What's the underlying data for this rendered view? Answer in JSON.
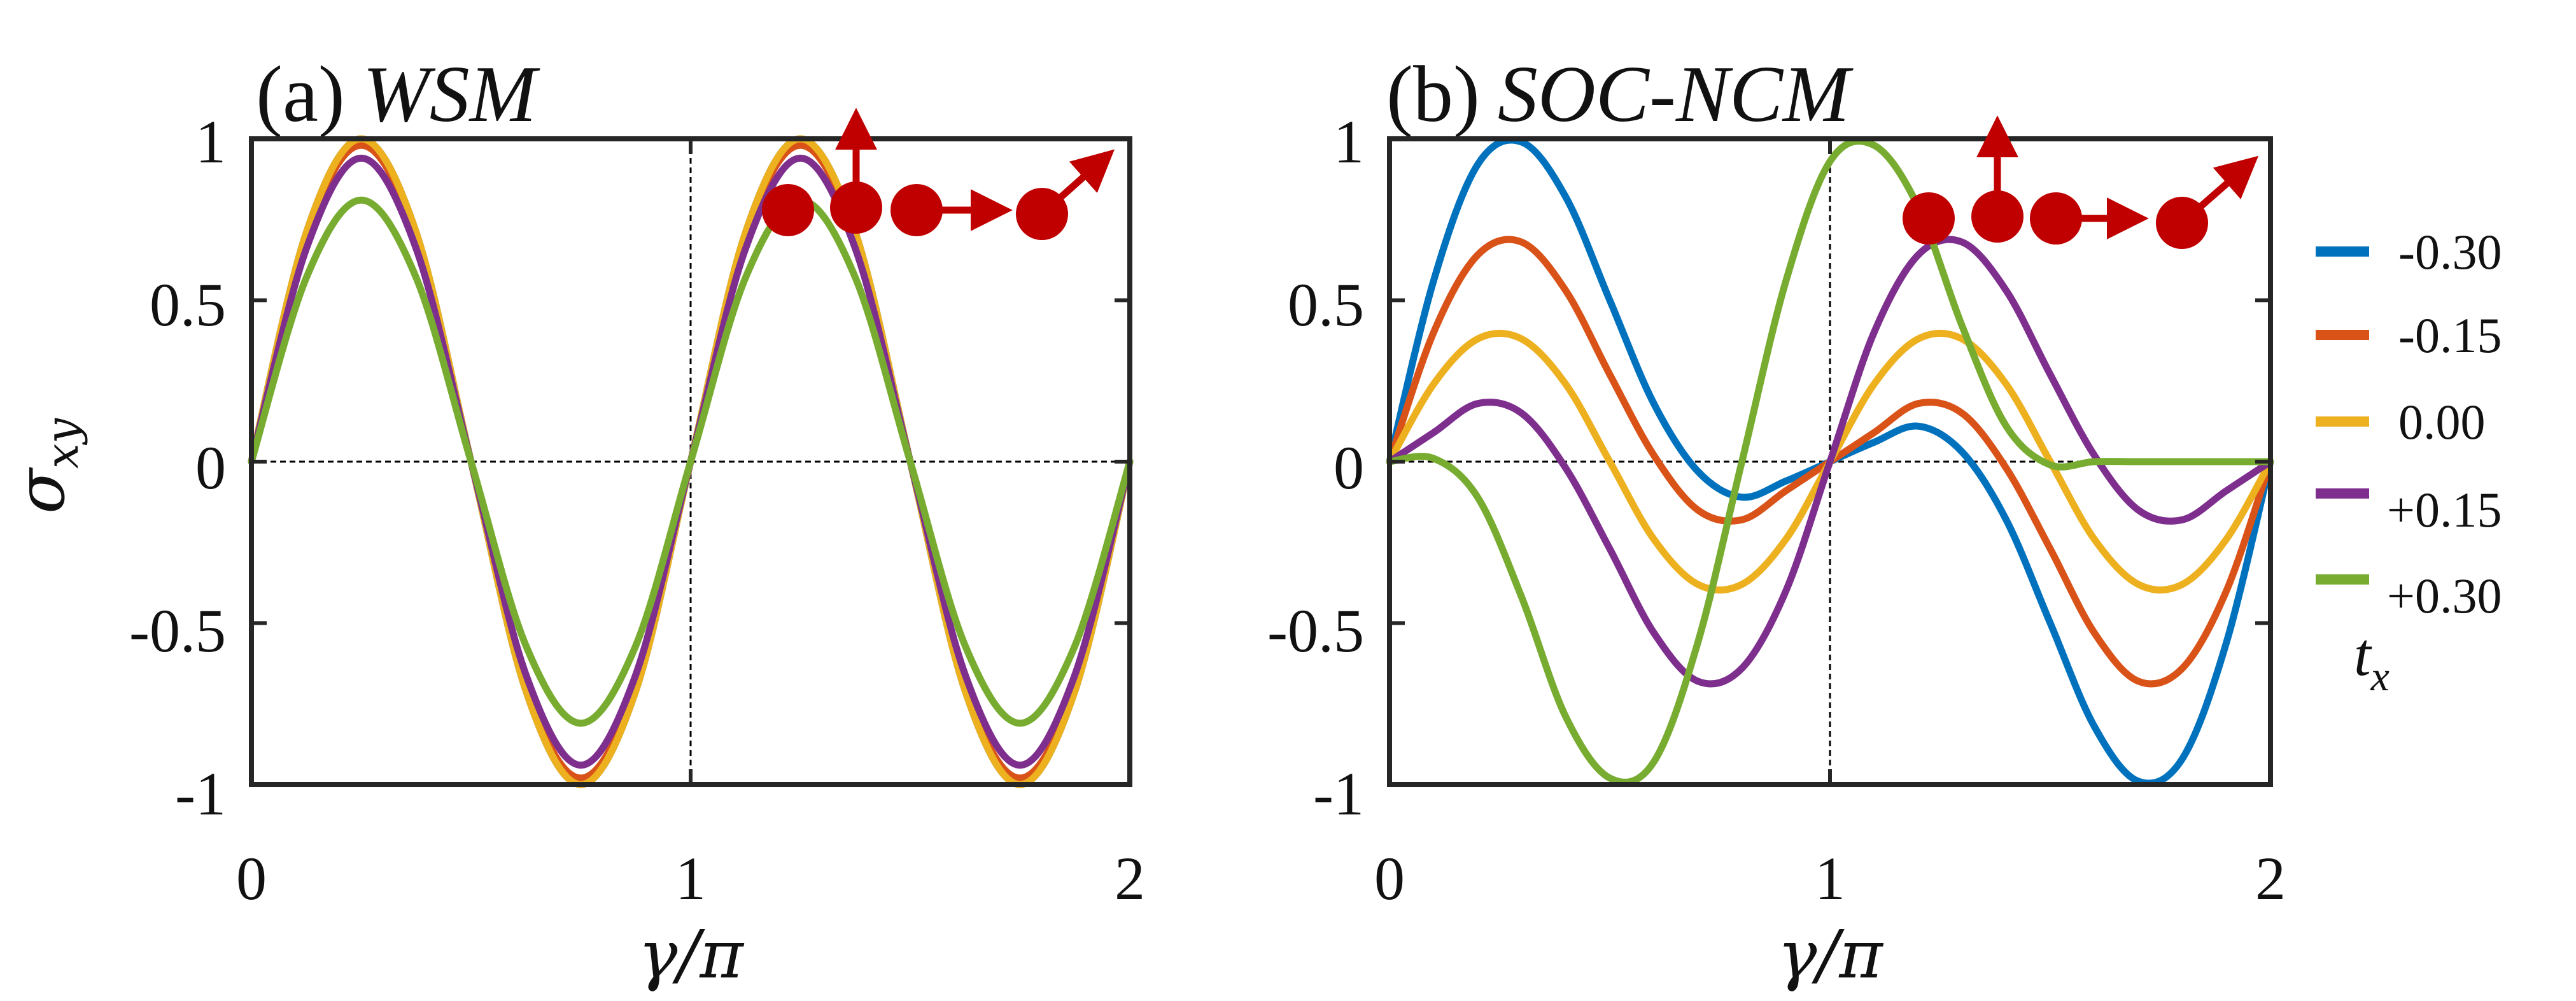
{
  "colors": {
    "series": [
      "#0072BD",
      "#D95319",
      "#EDB120",
      "#7E2F8E",
      "#77AC30"
    ],
    "axis": "#262626",
    "spin": "#C00000"
  },
  "icons": [
    "spin-arrow-icon"
  ],
  "legend": {
    "title": "t",
    "title_subscript": "x",
    "placement": "right",
    "entries": [
      "-0.30",
      "-0.15",
      "0.00",
      "+0.15",
      "+0.30"
    ]
  },
  "shared_axes": {
    "ylabel": "σ",
    "ylabel_subscript": "xy",
    "xlabel": "γ/π",
    "xticks": [
      "0",
      "1",
      "2"
    ],
    "yticks": [
      "-1",
      "-0.5",
      "0",
      "0.5",
      "1"
    ]
  },
  "chart_data": [
    {
      "type": "line",
      "panel_label": "(a)",
      "title": "WSM",
      "xlabel": "γ/π",
      "ylabel": "σxy",
      "xlim": [
        0,
        2
      ],
      "ylim": [
        -1,
        1
      ],
      "xtick_values": [
        0,
        1,
        2
      ],
      "ytick_values": [
        -1,
        -0.5,
        0,
        0.5,
        1
      ],
      "grid": false,
      "reference_lines": {
        "x": 1,
        "y": 0,
        "style": "dashed"
      },
      "x": [
        0,
        0.125,
        0.25,
        0.375,
        0.5,
        0.625,
        0.75,
        0.875,
        1,
        1.125,
        1.25,
        1.375,
        1.5,
        1.625,
        1.75,
        1.875,
        2
      ],
      "series": [
        {
          "name": "-0.30",
          "values": [
            0,
            0.71,
            1.0,
            0.71,
            0,
            -0.71,
            -1.0,
            -0.71,
            0,
            0.71,
            1.0,
            0.71,
            0,
            -0.71,
            -1.0,
            -0.71,
            0
          ]
        },
        {
          "name": "-0.15",
          "values": [
            0,
            0.7,
            0.98,
            0.7,
            0,
            -0.7,
            -0.98,
            -0.7,
            0,
            0.7,
            0.98,
            0.7,
            0,
            -0.7,
            -0.98,
            -0.7,
            0
          ]
        },
        {
          "name": "0.00",
          "values": [
            0,
            0.71,
            1.0,
            0.71,
            0,
            -0.71,
            -1.0,
            -0.71,
            0,
            0.71,
            1.0,
            0.71,
            0,
            -0.71,
            -1.0,
            -0.71,
            0
          ]
        },
        {
          "name": "+0.15",
          "values": [
            0,
            0.66,
            0.94,
            0.66,
            0,
            -0.66,
            -0.94,
            -0.66,
            0,
            0.66,
            0.94,
            0.66,
            0,
            -0.66,
            -0.94,
            -0.66,
            0
          ]
        },
        {
          "name": "+0.30",
          "values": [
            0,
            0.57,
            0.81,
            0.57,
            0,
            -0.57,
            -0.81,
            -0.57,
            0,
            0.57,
            0.81,
            0.57,
            0,
            -0.57,
            -0.81,
            -0.57,
            0
          ]
        }
      ]
    },
    {
      "type": "line",
      "panel_label": "(b)",
      "title": "SOC-NCM",
      "xlabel": "γ/π",
      "ylabel": "σxy",
      "xlim": [
        0,
        2
      ],
      "ylim": [
        -1,
        1
      ],
      "xtick_values": [
        0,
        1,
        2
      ],
      "ytick_values": [
        -1,
        -0.5,
        0,
        0.5,
        1
      ],
      "grid": false,
      "reference_lines": {
        "x": 1,
        "y": 0,
        "style": "dashed"
      },
      "x": [
        0,
        0.1,
        0.2,
        0.3,
        0.4,
        0.5,
        0.6,
        0.7,
        0.8,
        0.9,
        1,
        1.1,
        1.2,
        1.3,
        1.4,
        1.5,
        1.6,
        1.7,
        1.8,
        1.9,
        2
      ],
      "series": [
        {
          "name": "-0.30",
          "values": [
            0,
            0.56,
            0.92,
            0.99,
            0.82,
            0.5,
            0.18,
            -0.03,
            -0.11,
            -0.06,
            0,
            0.06,
            0.11,
            0.03,
            -0.18,
            -0.5,
            -0.82,
            -0.99,
            -0.92,
            -0.56,
            0
          ]
        },
        {
          "name": "-0.15",
          "values": [
            0,
            0.4,
            0.64,
            0.68,
            0.53,
            0.27,
            0.02,
            -0.15,
            -0.18,
            -0.09,
            0,
            0.09,
            0.18,
            0.15,
            -0.02,
            -0.27,
            -0.53,
            -0.68,
            -0.64,
            -0.4,
            0
          ]
        },
        {
          "name": "0.00",
          "values": [
            0,
            0.24,
            0.38,
            0.38,
            0.24,
            0,
            -0.24,
            -0.38,
            -0.38,
            -0.24,
            0,
            0.24,
            0.38,
            0.38,
            0.24,
            0,
            -0.24,
            -0.38,
            -0.38,
            -0.24,
            0
          ]
        },
        {
          "name": "+0.15",
          "values": [
            0,
            0.09,
            0.18,
            0.15,
            -0.02,
            -0.27,
            -0.53,
            -0.68,
            -0.64,
            -0.4,
            0,
            0.4,
            0.64,
            0.68,
            0.53,
            0.27,
            0.02,
            -0.15,
            -0.18,
            -0.09,
            0
          ]
        },
        {
          "name": "+0.30",
          "values": [
            0,
            0.01,
            -0.11,
            -0.42,
            -0.79,
            -0.98,
            -0.93,
            -0.56,
            0,
            0.56,
            0.93,
            0.98,
            0.79,
            0.42,
            0.11,
            -0.01,
            0,
            0,
            0,
            0,
            0
          ]
        }
      ]
    }
  ]
}
